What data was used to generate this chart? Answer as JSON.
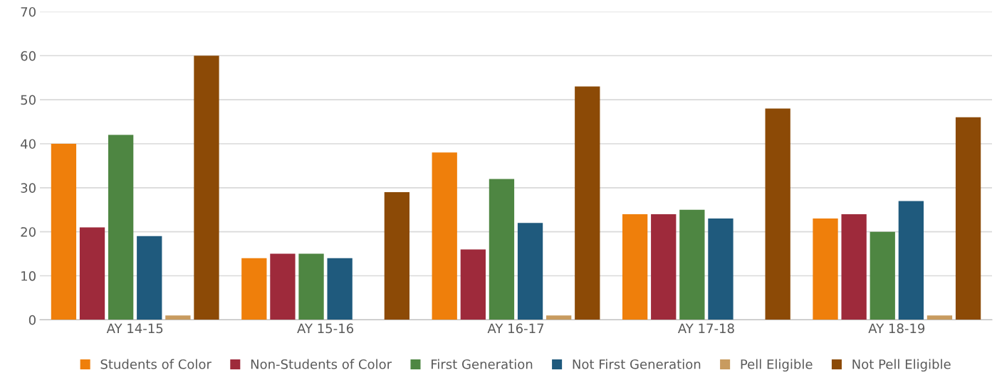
{
  "chart_data": {
    "type": "bar",
    "categories": [
      "AY 14-15",
      "AY 15-16",
      "AY 16-17",
      "AY 17-18",
      "AY 18-19"
    ],
    "series": [
      {
        "name": "Students of Color",
        "color": "#ef7f0b",
        "values": [
          40,
          14,
          38,
          24,
          23
        ]
      },
      {
        "name": "Non-Students of Color",
        "color": "#9e2a3b",
        "values": [
          21,
          15,
          16,
          24,
          24
        ]
      },
      {
        "name": "First Generation",
        "color": "#4e8642",
        "values": [
          42,
          15,
          32,
          25,
          20
        ]
      },
      {
        "name": "Not First Generation",
        "color": "#1f5a7d",
        "values": [
          19,
          14,
          22,
          23,
          27
        ]
      },
      {
        "name": "Pell Eligible",
        "color": "#c89b5f",
        "values": [
          1,
          0,
          1,
          0,
          1
        ]
      },
      {
        "name": "Not Pell Eligible",
        "color": "#8c4a06",
        "values": [
          60,
          29,
          53,
          48,
          46
        ]
      }
    ],
    "ylim": [
      0,
      70
    ],
    "yticks": [
      0,
      10,
      20,
      30,
      40,
      50,
      60,
      70
    ],
    "grid": "y",
    "legend": "bottom"
  }
}
